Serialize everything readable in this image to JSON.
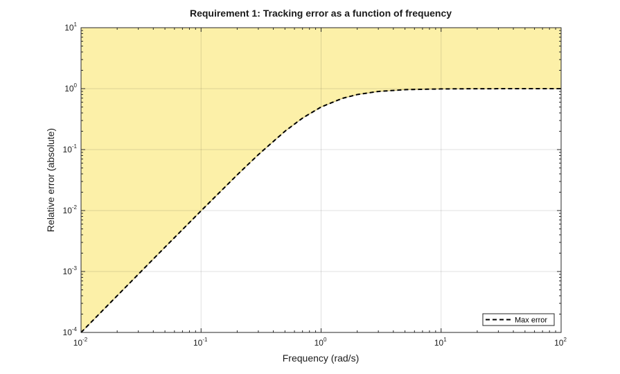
{
  "chart_data": {
    "type": "line",
    "title": "Requirement 1: Tracking error as a function of frequency",
    "xlabel": "Frequency (rad/s)",
    "ylabel": "Relative error (absolute)",
    "xscale": "log",
    "yscale": "log",
    "xlim": [
      0.01,
      100
    ],
    "ylim": [
      0.0001,
      10
    ],
    "grid": true,
    "x_ticks": [
      {
        "base": "10",
        "exp": "-2",
        "value": 0.01
      },
      {
        "base": "10",
        "exp": "-1",
        "value": 0.1
      },
      {
        "base": "10",
        "exp": "0",
        "value": 1
      },
      {
        "base": "10",
        "exp": "1",
        "value": 10
      },
      {
        "base": "10",
        "exp": "2",
        "value": 100
      }
    ],
    "y_ticks": [
      {
        "base": "10",
        "exp": "-4",
        "value": 0.0001
      },
      {
        "base": "10",
        "exp": "-3",
        "value": 0.001
      },
      {
        "base": "10",
        "exp": "-2",
        "value": 0.01
      },
      {
        "base": "10",
        "exp": "-1",
        "value": 0.1
      },
      {
        "base": "10",
        "exp": "0",
        "value": 1
      },
      {
        "base": "10",
        "exp": "1",
        "value": 10
      }
    ],
    "series": [
      {
        "name": "Max error",
        "style": "dashed",
        "color": "#000000",
        "x": [
          0.01,
          0.02,
          0.05,
          0.1,
          0.2,
          0.3,
          0.5,
          0.7,
          1,
          1.5,
          2,
          3,
          5,
          10,
          20,
          50,
          100
        ],
        "y": [
          0.0001,
          0.0004,
          0.0025,
          0.0099,
          0.0385,
          0.0826,
          0.2,
          0.329,
          0.5,
          0.692,
          0.8,
          0.9,
          0.962,
          0.99,
          0.9975,
          0.9996,
          0.9999
        ]
      }
    ],
    "shaded_region": {
      "description_color": "#fcf0a8",
      "edge_color": "#c8b86a",
      "bounded_by_series": "Max error",
      "side": "above"
    },
    "legend": {
      "placement": "bottom-right",
      "entries": [
        "Max error"
      ]
    }
  }
}
